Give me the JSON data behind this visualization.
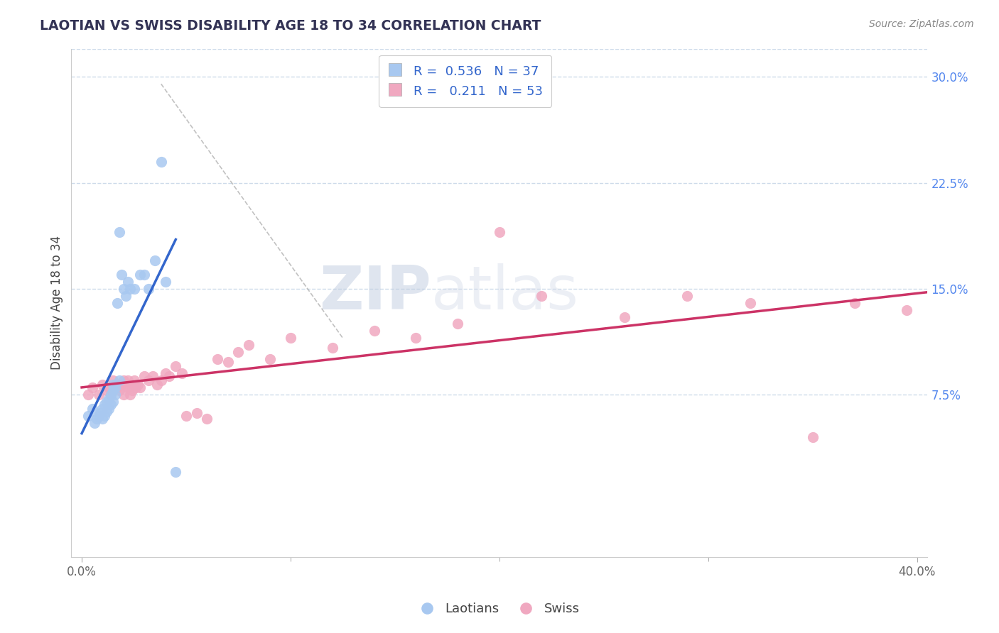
{
  "title": "LAOTIAN VS SWISS DISABILITY AGE 18 TO 34 CORRELATION CHART",
  "source_text": "Source: ZipAtlas.com",
  "ylabel": "Disability Age 18 to 34",
  "xlim": [
    -0.005,
    0.405
  ],
  "ylim": [
    -0.04,
    0.32
  ],
  "x_ticks": [
    0.0,
    0.4
  ],
  "x_tick_labels": [
    "0.0%",
    "40.0%"
  ],
  "y_ticks": [
    0.075,
    0.15,
    0.225,
    0.3
  ],
  "y_tick_labels": [
    "7.5%",
    "15.0%",
    "22.5%",
    "30.0%"
  ],
  "watermark_zip": "ZIP",
  "watermark_atlas": "atlas",
  "legend_r1": "R = 0.536",
  "legend_n1": "N = 37",
  "legend_r2": "R = 0.211",
  "legend_n2": "N = 53",
  "laotian_color": "#a8c8f0",
  "swiss_color": "#f0a8c0",
  "laotian_line_color": "#3366cc",
  "swiss_line_color": "#cc3366",
  "background_color": "#ffffff",
  "grid_color": "#c8d8e8",
  "laotians_scatter_x": [
    0.003,
    0.005,
    0.006,
    0.007,
    0.008,
    0.009,
    0.01,
    0.01,
    0.011,
    0.011,
    0.012,
    0.012,
    0.013,
    0.013,
    0.014,
    0.014,
    0.015,
    0.015,
    0.015,
    0.016,
    0.016,
    0.017,
    0.018,
    0.018,
    0.019,
    0.02,
    0.021,
    0.022,
    0.023,
    0.025,
    0.028,
    0.03,
    0.032,
    0.035,
    0.038,
    0.04,
    0.045
  ],
  "laotians_scatter_y": [
    0.06,
    0.065,
    0.055,
    0.058,
    0.06,
    0.062,
    0.065,
    0.058,
    0.06,
    0.068,
    0.063,
    0.07,
    0.065,
    0.072,
    0.068,
    0.075,
    0.07,
    0.078,
    0.082,
    0.075,
    0.08,
    0.14,
    0.19,
    0.085,
    0.16,
    0.15,
    0.145,
    0.155,
    0.15,
    0.15,
    0.16,
    0.16,
    0.15,
    0.17,
    0.24,
    0.155,
    0.02
  ],
  "swiss_scatter_x": [
    0.003,
    0.005,
    0.008,
    0.01,
    0.012,
    0.013,
    0.014,
    0.015,
    0.016,
    0.017,
    0.018,
    0.019,
    0.02,
    0.02,
    0.021,
    0.022,
    0.022,
    0.023,
    0.024,
    0.025,
    0.026,
    0.027,
    0.028,
    0.03,
    0.032,
    0.034,
    0.036,
    0.038,
    0.04,
    0.042,
    0.045,
    0.048,
    0.05,
    0.055,
    0.06,
    0.065,
    0.07,
    0.075,
    0.08,
    0.09,
    0.1,
    0.12,
    0.14,
    0.16,
    0.18,
    0.2,
    0.22,
    0.26,
    0.29,
    0.32,
    0.35,
    0.37,
    0.395
  ],
  "swiss_scatter_y": [
    0.075,
    0.08,
    0.075,
    0.082,
    0.078,
    0.08,
    0.075,
    0.085,
    0.082,
    0.08,
    0.078,
    0.082,
    0.085,
    0.075,
    0.082,
    0.08,
    0.085,
    0.075,
    0.078,
    0.085,
    0.08,
    0.082,
    0.08,
    0.088,
    0.085,
    0.088,
    0.082,
    0.085,
    0.09,
    0.088,
    0.095,
    0.09,
    0.06,
    0.062,
    0.058,
    0.1,
    0.098,
    0.105,
    0.11,
    0.1,
    0.115,
    0.108,
    0.12,
    0.115,
    0.125,
    0.19,
    0.145,
    0.13,
    0.145,
    0.14,
    0.045,
    0.14,
    0.135
  ]
}
